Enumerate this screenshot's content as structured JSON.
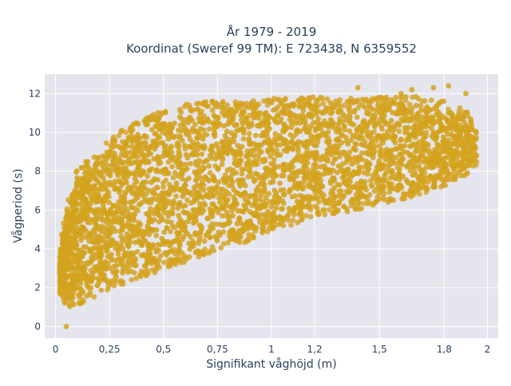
{
  "chart_data": {
    "type": "scatter",
    "title_line1": "År 1979 - 2019",
    "title_line2": "Koordinat (Sweref 99 TM): E 723438, N 6359552",
    "xlabel": "Signifikant våghöjd (m)",
    "ylabel": "Vågperiod (s)",
    "xlim": [
      -0.05,
      2.05
    ],
    "ylim": [
      -0.6,
      13.0
    ],
    "xticks": [
      0,
      0.25,
      0.5,
      0.75,
      1,
      1.2,
      1.5,
      1.8,
      2
    ],
    "xtick_labels": [
      "0",
      "0,25",
      "0,5",
      "0,75",
      "1",
      "1,2",
      "1,5",
      "1,8",
      "2"
    ],
    "yticks": [
      0,
      2,
      4,
      6,
      8,
      10,
      12
    ],
    "ytick_labels": [
      "0",
      "2",
      "4",
      "6",
      "8",
      "10",
      "12"
    ],
    "grid": true,
    "marker_color": "#D4A31F",
    "plot_bgcolor": "#E5E5EE",
    "envelope": {
      "x": [
        0.02,
        0.05,
        0.08,
        0.1,
        0.15,
        0.2,
        0.25,
        0.3,
        0.4,
        0.5,
        0.6,
        0.75,
        0.9,
        1.0,
        1.2,
        1.4,
        1.5,
        1.6,
        1.7,
        1.8,
        1.9,
        1.95
      ],
      "y_upper": [
        4.0,
        5.8,
        7.2,
        7.8,
        8.4,
        8.8,
        9.4,
        9.8,
        10.3,
        10.8,
        11.1,
        11.3,
        11.3,
        11.4,
        11.5,
        11.4,
        11.5,
        11.6,
        11.5,
        11.3,
        10.8,
        9.8
      ],
      "y_lower": [
        1.6,
        1.3,
        1.3,
        1.4,
        1.6,
        1.9,
        2.2,
        2.4,
        2.8,
        3.2,
        3.6,
        4.2,
        4.7,
        5.2,
        5.8,
        6.3,
        6.6,
        6.8,
        7.1,
        7.5,
        8.1,
        8.6
      ]
    },
    "outliers": [
      {
        "x": 0.05,
        "y": 0.0
      },
      {
        "x": 1.4,
        "y": 12.3
      },
      {
        "x": 1.65,
        "y": 12.2
      },
      {
        "x": 1.75,
        "y": 12.3
      },
      {
        "x": 1.82,
        "y": 12.4
      },
      {
        "x": 1.9,
        "y": 12.0
      },
      {
        "x": 1.6,
        "y": 12.0
      }
    ]
  }
}
